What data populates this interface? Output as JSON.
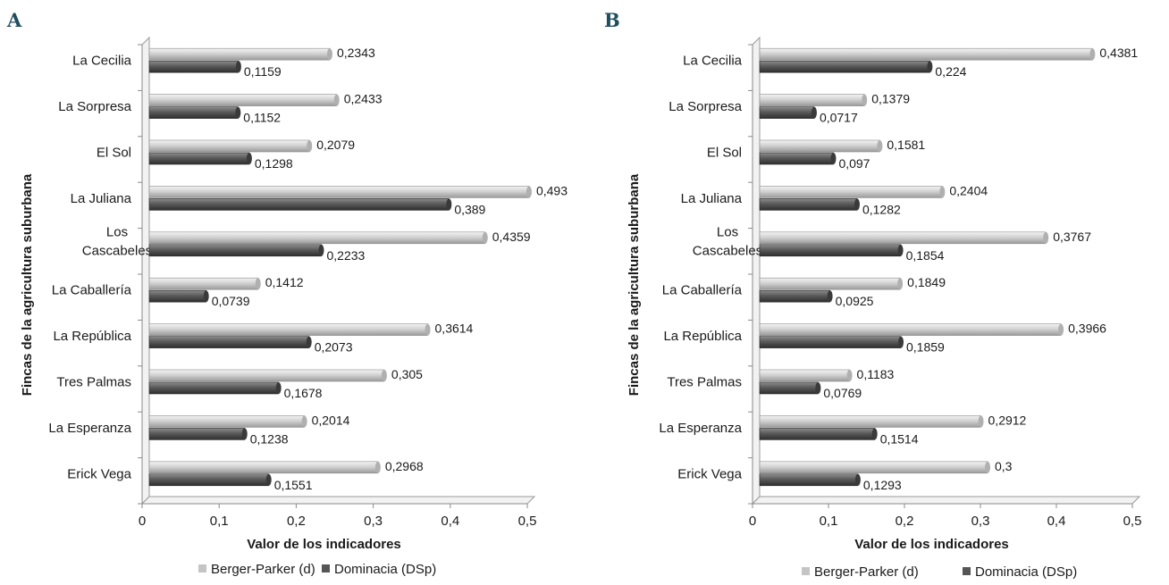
{
  "chart_data": [
    {
      "panel_label": "A",
      "type": "bar",
      "orientation": "horizontal",
      "categories": [
        "La Cecilia",
        "La Sorpresa",
        "El Sol",
        "La Juliana",
        "Los Cascabeles",
        "La Caballería",
        "La República",
        "Tres Palmas",
        "La Esperanza",
        "Erick Vega"
      ],
      "series": [
        {
          "name": "Berger-Parker (d)",
          "values": [
            0.2343,
            0.2433,
            0.2079,
            0.493,
            0.4359,
            0.1412,
            0.3614,
            0.305,
            0.2014,
            0.2968
          ],
          "labels": [
            "0,2343",
            "0,2433",
            "0,2079",
            "0,493",
            "0,4359",
            "0,1412",
            "0,3614",
            "0,305",
            "0,2014",
            "0,2968"
          ],
          "color": "#c4c4c4"
        },
        {
          "name": "Dominacia (DSp)",
          "values": [
            0.1159,
            0.1152,
            0.1298,
            0.389,
            0.2233,
            0.0739,
            0.2073,
            0.1678,
            0.1238,
            0.1551
          ],
          "labels": [
            "0,1159",
            "0,1152",
            "0,1298",
            "0,389",
            "0,2233",
            "0,0739",
            "0,2073",
            "0,1678",
            "0,1238",
            "0,1551"
          ],
          "color": "#555555"
        }
      ],
      "xlabel": "Valor de los indicadores",
      "ylabel": "Fincas de la agricultura suburbana",
      "xlim": [
        0,
        0.5
      ],
      "xticks": [
        "0",
        "0,1",
        "0,2",
        "0,3",
        "0,4",
        "0,5"
      ],
      "grid": false,
      "legend_position": "bottom"
    },
    {
      "panel_label": "B",
      "type": "bar",
      "orientation": "horizontal",
      "categories": [
        "La Cecilia",
        "La Sorpresa",
        "El Sol",
        "La Juliana",
        "Los Cascabeles",
        "La Caballería",
        "La República",
        "Tres Palmas",
        "La Esperanza",
        "Erick Vega"
      ],
      "series": [
        {
          "name": "Berger-Parker (d)",
          "values": [
            0.4381,
            0.1379,
            0.1581,
            0.2404,
            0.3767,
            0.1849,
            0.3966,
            0.1183,
            0.2912,
            0.3
          ],
          "labels": [
            "0,4381",
            "0,1379",
            "0,1581",
            "0,2404",
            "0,3767",
            "0,1849",
            "0,3966",
            "0,1183",
            "0,2912",
            "0,3"
          ],
          "color": "#c4c4c4"
        },
        {
          "name": "Dominacia (DSp)",
          "values": [
            0.224,
            0.0717,
            0.097,
            0.1282,
            0.1854,
            0.0925,
            0.1859,
            0.0769,
            0.1514,
            0.1293
          ],
          "labels": [
            "0,224",
            "0,0717",
            "0,097",
            "0,1282",
            "0,1854",
            "0,0925",
            "0,1859",
            "0,0769",
            "0,1514",
            "0,1293"
          ],
          "color": "#555555"
        }
      ],
      "xlabel": "Valor de los indicadores",
      "ylabel": "Fincas de la agricultura suburbana",
      "xlim": [
        0,
        0.5
      ],
      "xticks": [
        "0",
        "0,1",
        "0,2",
        "0,3",
        "0,4",
        "0,5"
      ],
      "grid": false,
      "legend_position": "bottom"
    }
  ]
}
